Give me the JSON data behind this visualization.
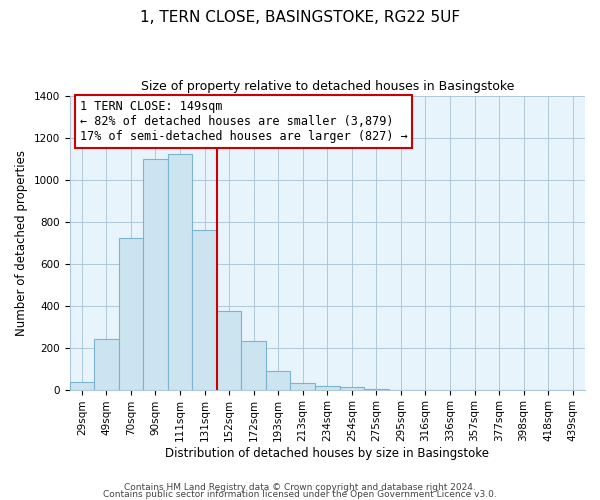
{
  "title": "1, TERN CLOSE, BASINGSTOKE, RG22 5UF",
  "subtitle": "Size of property relative to detached houses in Basingstoke",
  "xlabel": "Distribution of detached houses by size in Basingstoke",
  "ylabel": "Number of detached properties",
  "bar_labels": [
    "29sqm",
    "49sqm",
    "70sqm",
    "90sqm",
    "111sqm",
    "131sqm",
    "152sqm",
    "172sqm",
    "193sqm",
    "213sqm",
    "234sqm",
    "254sqm",
    "275sqm",
    "295sqm",
    "316sqm",
    "336sqm",
    "357sqm",
    "377sqm",
    "398sqm",
    "418sqm",
    "439sqm"
  ],
  "bar_values": [
    35,
    240,
    720,
    1100,
    1120,
    760,
    375,
    230,
    90,
    30,
    18,
    10,
    5,
    0,
    0,
    0,
    0,
    0,
    0,
    0,
    0
  ],
  "bar_color": "#cce4f0",
  "bar_edge_color": "#7ab4d0",
  "bg_color": "#e8f4fb",
  "vline_color": "#cc0000",
  "annotation_text": "1 TERN CLOSE: 149sqm\n← 82% of detached houses are smaller (3,879)\n17% of semi-detached houses are larger (827) →",
  "annotation_box_color": "#ffffff",
  "annotation_box_edge": "#cc0000",
  "ylim": [
    0,
    1400
  ],
  "yticks": [
    0,
    200,
    400,
    600,
    800,
    1000,
    1200,
    1400
  ],
  "footer_line1": "Contains HM Land Registry data © Crown copyright and database right 2024.",
  "footer_line2": "Contains public sector information licensed under the Open Government Licence v3.0.",
  "title_fontsize": 11,
  "subtitle_fontsize": 9,
  "axis_label_fontsize": 8.5,
  "tick_fontsize": 7.5,
  "annotation_fontsize": 8.5,
  "footer_fontsize": 6.5,
  "vline_x_index": 6
}
